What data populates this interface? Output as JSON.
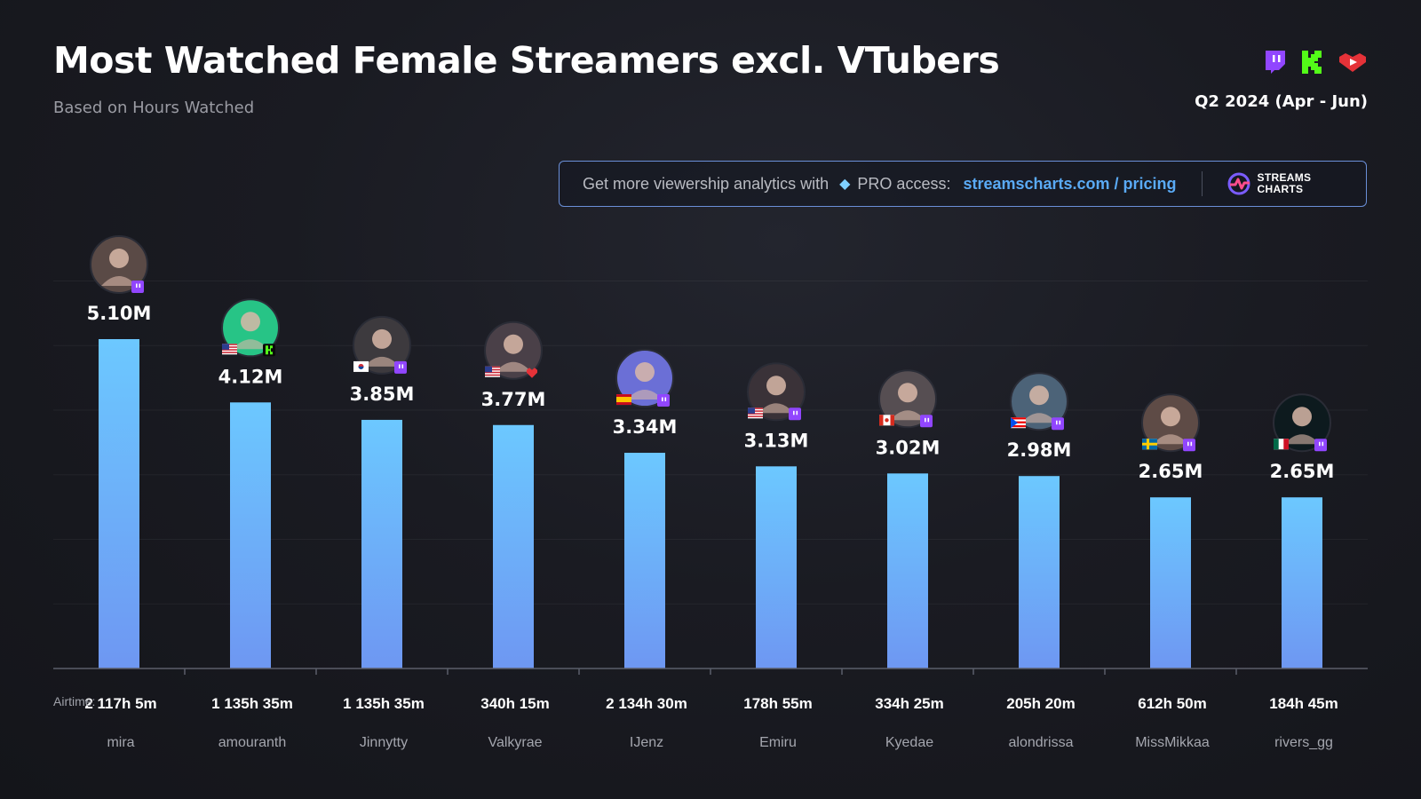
{
  "header": {
    "title": "Most Watched Female Streamers excl. VTubers",
    "subtitle": "Based on Hours Watched",
    "period": "Q2 2024 (Apr - Jun)",
    "platforms": [
      "twitch-icon",
      "kick-icon",
      "youtube-icon"
    ]
  },
  "promo": {
    "text": "Get more viewership analytics with",
    "pro_text": "PRO access:",
    "link": "streamscharts.com / pricing",
    "brand_line1": "STREAMS",
    "brand_line2": "CHARTS"
  },
  "airtime_label": "Airtime:",
  "colors": {
    "bar_top": "#6cc8ff",
    "bar_bottom": "#6e97f2",
    "twitch": "#9146ff",
    "kick": "#53fc18",
    "youtube": "#e53238",
    "link": "#5aaaf5"
  },
  "chart_data": {
    "type": "bar",
    "title": "Most Watched Female Streamers excl. VTubers",
    "ylabel": "",
    "xlabel": "",
    "ylim": [
      0,
      6.0
    ],
    "grid": true,
    "categories": [
      "mira",
      "amouranth",
      "Jinnytty",
      "Valkyrae",
      "IJenz",
      "Emiru",
      "Kyedae",
      "alondrissa",
      "MissMikkaa",
      "rivers_gg"
    ],
    "values": [
      5.1,
      4.12,
      3.85,
      3.77,
      3.34,
      3.13,
      3.02,
      2.98,
      2.65,
      2.65
    ],
    "value_labels": [
      "5.10M",
      "4.12M",
      "3.85M",
      "3.77M",
      "3.34M",
      "3.13M",
      "3.02M",
      "2.98M",
      "2.65M",
      "2.65M"
    ],
    "airtime": [
      "2 117h 5m",
      "1 135h 35m",
      "1 135h 35m",
      "340h 15m",
      "2 134h 30m",
      "178h 55m",
      "334h 25m",
      "205h 20m",
      "612h 50m",
      "184h 45m"
    ],
    "platform": [
      "twitch",
      "kick",
      "twitch",
      "youtube",
      "twitch",
      "twitch",
      "twitch",
      "twitch",
      "twitch",
      "twitch"
    ],
    "country": [
      "",
      "us",
      "kr",
      "us",
      "es",
      "us",
      "ca",
      "pr",
      "se",
      "mx"
    ]
  }
}
